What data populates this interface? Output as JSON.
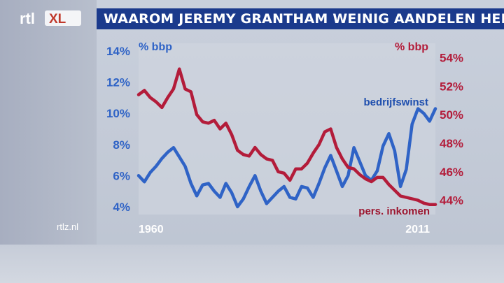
{
  "header": {
    "logo_text": "rtl XL",
    "title": "WAAROM JEREMY GRANTHAM WEINIG AANDELEN HEEFT"
  },
  "footer": {
    "source": "rtlz.nl"
  },
  "colors": {
    "left_series": "#2f63c6",
    "right_series": "#b31c3a",
    "title_bar": "#1b3a8c"
  },
  "chart_data": {
    "type": "line",
    "left_unit_label": "% bbp",
    "right_unit_label": "% bbp",
    "x_labels": [
      "1960",
      "2011"
    ],
    "xlim": [
      1960,
      2011
    ],
    "ylim_left": [
      3.5,
      14.5
    ],
    "ylim_right": [
      43,
      55
    ],
    "yticks_left": [
      "14%",
      "12%",
      "10%",
      "8%",
      "6%",
      "4%"
    ],
    "yticks_right": [
      "54%",
      "52%",
      "50%",
      "48%",
      "46%",
      "44%"
    ],
    "grid": false,
    "series": [
      {
        "name": "bedrijfswinst",
        "axis": "left",
        "x": [
          1960,
          1961,
          1962,
          1963,
          1964,
          1965,
          1966,
          1967,
          1968,
          1969,
          1970,
          1971,
          1972,
          1973,
          1974,
          1975,
          1976,
          1977,
          1978,
          1979,
          1980,
          1981,
          1982,
          1983,
          1984,
          1985,
          1986,
          1987,
          1988,
          1989,
          1990,
          1991,
          1992,
          1993,
          1994,
          1995,
          1996,
          1997,
          1998,
          1999,
          2000,
          2001,
          2002,
          2003,
          2004,
          2005,
          2006,
          2007,
          2008,
          2009,
          2010,
          2011
        ],
        "values": [
          6.0,
          5.6,
          6.2,
          6.6,
          7.1,
          7.5,
          7.8,
          7.2,
          6.6,
          5.5,
          4.7,
          5.4,
          5.5,
          5.0,
          4.6,
          5.5,
          4.9,
          4.0,
          4.5,
          5.3,
          6.0,
          5.0,
          4.2,
          4.6,
          5.0,
          5.3,
          4.6,
          4.5,
          5.3,
          5.2,
          4.6,
          5.5,
          6.5,
          7.3,
          6.3,
          5.3,
          6.0,
          7.8,
          6.9,
          6.0,
          5.7,
          6.3,
          7.9,
          8.7,
          7.6,
          5.3,
          6.4,
          9.3,
          10.3,
          10.0,
          9.5,
          10.3
        ]
      },
      {
        "name": "pers. inkomen",
        "axis": "right",
        "x": [
          1960,
          1961,
          1962,
          1963,
          1964,
          1965,
          1966,
          1967,
          1968,
          1969,
          1970,
          1971,
          1972,
          1973,
          1974,
          1975,
          1976,
          1977,
          1978,
          1979,
          1980,
          1981,
          1982,
          1983,
          1984,
          1985,
          1986,
          1987,
          1988,
          1989,
          1990,
          1991,
          1992,
          1993,
          1994,
          1995,
          1996,
          1997,
          1998,
          1999,
          2000,
          2001,
          2002,
          2003,
          2004,
          2005,
          2006,
          2007,
          2008,
          2009,
          2010,
          2011
        ],
        "values": [
          51.4,
          51.7,
          51.2,
          50.9,
          50.5,
          51.2,
          51.8,
          53.2,
          51.8,
          51.6,
          50.0,
          49.5,
          49.4,
          49.6,
          49.0,
          49.4,
          48.6,
          47.5,
          47.2,
          47.1,
          47.7,
          47.2,
          46.9,
          46.8,
          46.0,
          45.9,
          45.4,
          46.2,
          46.2,
          46.6,
          47.3,
          47.9,
          48.8,
          49.0,
          47.7,
          46.9,
          46.3,
          46.2,
          45.8,
          45.5,
          45.3,
          45.6,
          45.6,
          45.1,
          44.7,
          44.3,
          44.2,
          44.1,
          44.0,
          43.8,
          43.7,
          43.7
        ]
      }
    ]
  }
}
